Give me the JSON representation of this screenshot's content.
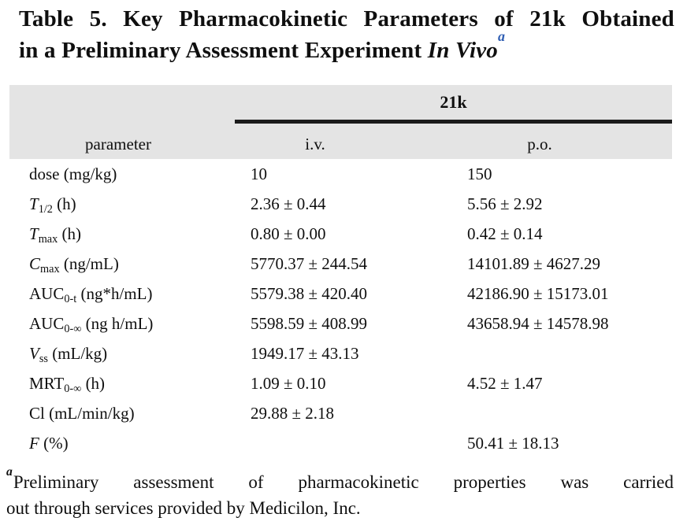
{
  "title": {
    "line1": "Table 5. Key Pharmacokinetic Parameters of 21k Obtained",
    "line2_prefix": "in a Preliminary Assessment Experiment ",
    "line2_italic": "In Vivo",
    "superscript": "a"
  },
  "colors": {
    "header_band_bg": "#e4e4e4",
    "text": "#0f0f0f",
    "accent_blue": "#2f5eb3",
    "rule_black": "#1b1b1b"
  },
  "table": {
    "group_header": "21k",
    "col_headers": [
      "parameter",
      "i.v.",
      "p.o."
    ],
    "rows": [
      {
        "param_parts": [
          {
            "t": "dose (mg/kg)",
            "s": ""
          }
        ],
        "iv": "10",
        "po": "150"
      },
      {
        "param_parts": [
          {
            "t": "T",
            "s": "i"
          },
          {
            "t": "1/2",
            "s": "sub"
          },
          {
            "t": " (h)",
            "s": ""
          }
        ],
        "iv": "2.36 ± 0.44",
        "po": "5.56 ± 2.92"
      },
      {
        "param_parts": [
          {
            "t": "T",
            "s": "i"
          },
          {
            "t": "max",
            "s": "sub"
          },
          {
            "t": " (h)",
            "s": ""
          }
        ],
        "iv": "0.80 ± 0.00",
        "po": "0.42 ± 0.14"
      },
      {
        "param_parts": [
          {
            "t": "C",
            "s": "i"
          },
          {
            "t": "max",
            "s": "sub"
          },
          {
            "t": " (ng/mL)",
            "s": ""
          }
        ],
        "iv": "5770.37 ± 244.54",
        "po": "14101.89 ± 4627.29"
      },
      {
        "param_parts": [
          {
            "t": "AUC",
            "s": ""
          },
          {
            "t": "0-t",
            "s": "sub"
          },
          {
            "t": " (ng*h/mL)",
            "s": ""
          }
        ],
        "iv": "5579.38 ± 420.40",
        "po": "42186.90 ± 15173.01"
      },
      {
        "param_parts": [
          {
            "t": "AUC",
            "s": ""
          },
          {
            "t": "0-∞",
            "s": "sub"
          },
          {
            "t": " (ng h/mL)",
            "s": ""
          }
        ],
        "iv": "5598.59 ± 408.99",
        "po": "43658.94 ± 14578.98"
      },
      {
        "param_parts": [
          {
            "t": "V",
            "s": "i"
          },
          {
            "t": "ss",
            "s": "sub"
          },
          {
            "t": " (mL/kg)",
            "s": ""
          }
        ],
        "iv": "1949.17 ± 43.13",
        "po": ""
      },
      {
        "param_parts": [
          {
            "t": "MRT",
            "s": ""
          },
          {
            "t": "0-∞",
            "s": "sub"
          },
          {
            "t": " (h)",
            "s": ""
          }
        ],
        "iv": "1.09 ± 0.10",
        "po": "4.52 ± 1.47"
      },
      {
        "param_parts": [
          {
            "t": "Cl (mL/min/kg)",
            "s": ""
          }
        ],
        "iv": "29.88 ± 2.18",
        "po": ""
      },
      {
        "param_parts": [
          {
            "t": "F",
            "s": "i"
          },
          {
            "t": " (%)",
            "s": ""
          }
        ],
        "iv": "",
        "po": "50.41 ± 18.13"
      }
    ]
  },
  "footnote": {
    "marker": "a",
    "line1_rest": "Preliminary assessment of pharmacokinetic properties was carried",
    "line2": "out through services provided by Medicilon, Inc."
  }
}
